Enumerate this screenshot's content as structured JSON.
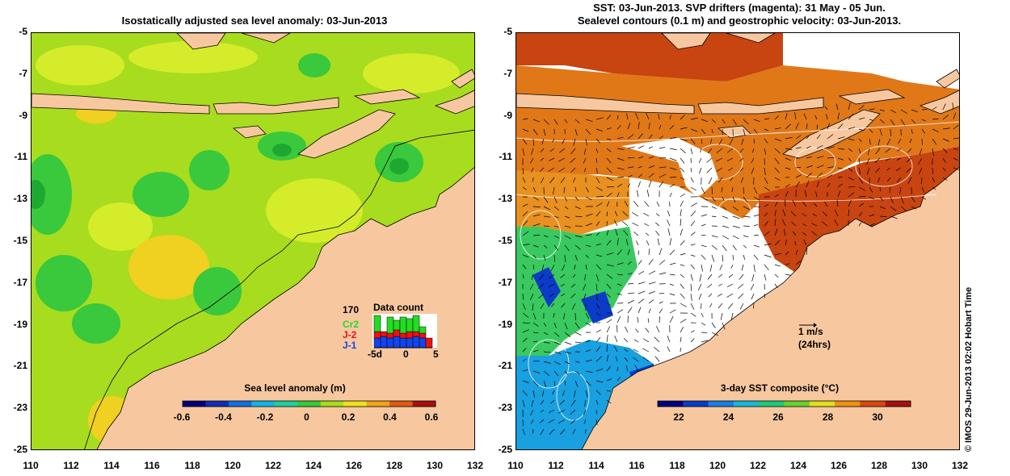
{
  "left": {
    "title": "Isostatically adjusted sea level anomaly: 03-Jun-2013",
    "colorbar_title": "Sea level anomaly (m)",
    "colorbar_ticks": [
      "-0.6",
      "-0.4",
      "-0.2",
      "0",
      "0.2",
      "0.4",
      "0.6"
    ],
    "colorbar_colors": [
      "#00007a",
      "#0a2fb4",
      "#1070e0",
      "#16b4e6",
      "#1ed09c",
      "#3ac83c",
      "#a8dc1e",
      "#f0e020",
      "#f0a418",
      "#e05a14",
      "#a81010"
    ],
    "legend": {
      "title": "Data count",
      "count": "170",
      "satellites": [
        {
          "name": "Cr2",
          "color": "#22dd22"
        },
        {
          "name": "J-2",
          "color": "#ee1111"
        },
        {
          "name": "J-1",
          "color": "#1144ee"
        }
      ],
      "axis_labels": [
        "-5d",
        "0",
        "5"
      ],
      "counts": [
        {
          "J-1": 0.3,
          "J-2": 0.2,
          "Cr2": 0.5
        },
        {
          "J-1": 0.35,
          "J-2": 0.15,
          "Cr2": 0.0
        },
        {
          "J-1": 0.3,
          "J-2": 0.15,
          "Cr2": 0.5
        },
        {
          "J-1": 0.35,
          "J-2": 0.2,
          "Cr2": 0.3
        },
        {
          "J-1": 0.3,
          "J-2": 0.15,
          "Cr2": 0.5
        },
        {
          "J-1": 0.3,
          "J-2": 0.2,
          "Cr2": 0.4
        },
        {
          "J-1": 0.35,
          "J-2": 0.15,
          "Cr2": 0.5
        },
        {
          "J-1": 0.3,
          "J-2": 0.15,
          "Cr2": 0.2
        },
        {
          "J-1": 0.0,
          "J-2": 0.3,
          "Cr2": 0.0
        }
      ]
    }
  },
  "right": {
    "title_lines": [
      "SST: 03-Jun-2013. SVP drifters (magenta): 31 May - 05 Jun.",
      "Sealevel contours (0.1 m) and geostrophic velocity: 03-Jun-2013."
    ],
    "colorbar_title": "3-day SST composite (°C)",
    "colorbar_ticks": [
      "22",
      "24",
      "26",
      "28",
      "30"
    ],
    "colorbar_colors": [
      "#000080",
      "#0a3cc8",
      "#1a7ee6",
      "#18b8d8",
      "#1ec87a",
      "#6ad030",
      "#e0e020",
      "#f09018",
      "#d84810",
      "#a81010"
    ],
    "velocity_scale": [
      "1 m/s",
      "(24hrs)"
    ]
  },
  "axes": {
    "lat_ticks": [
      "-5",
      "-7",
      "-9",
      "-11",
      "-13",
      "-15",
      "-17",
      "-19",
      "-21",
      "-23",
      "-25"
    ],
    "lon_ticks": [
      "110",
      "112",
      "114",
      "116",
      "118",
      "120",
      "122",
      "124",
      "126",
      "128",
      "130",
      "132"
    ]
  },
  "credit": "© IMOS 29-Jun-2013 02:02 Hobart Time",
  "colors": {
    "land": "#f7c8a0",
    "sla_background": "#a8dc1e",
    "sla_light": "#d0ee2a",
    "sla_green": "#3ac83c",
    "sst_red": "#c83c10",
    "sst_orange": "#e07818",
    "sst_green": "#3ac860",
    "sst_blue": "#18a0e0"
  }
}
